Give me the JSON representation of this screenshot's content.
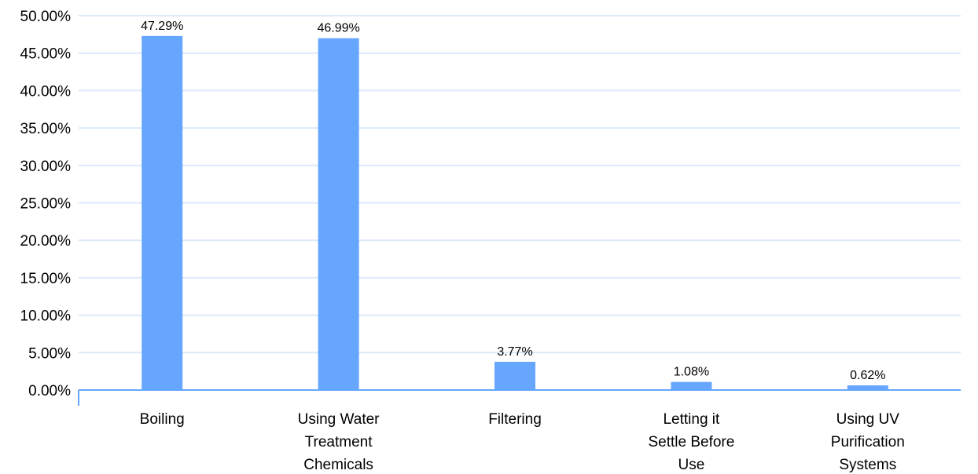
{
  "chart_data": {
    "type": "bar",
    "title": "",
    "xlabel": "",
    "ylabel": "",
    "categories": [
      [
        "Boiling"
      ],
      [
        "Using Water",
        "Treatment",
        "Chemicals"
      ],
      [
        "Filtering"
      ],
      [
        "Letting it",
        "Settle Before",
        "Use"
      ],
      [
        "Using UV",
        "Purification",
        "Systems"
      ]
    ],
    "values": [
      47.29,
      46.99,
      3.77,
      1.08,
      0.62
    ],
    "data_labels": [
      "47.29%",
      "46.99%",
      "3.77%",
      "1.08%",
      "0.62%"
    ],
    "ylim": [
      0,
      50
    ],
    "y_ticks": [
      0,
      5,
      10,
      15,
      20,
      25,
      30,
      35,
      40,
      45,
      50
    ],
    "y_tick_labels": [
      "0.00%",
      "5.00%",
      "10.00%",
      "15.00%",
      "20.00%",
      "25.00%",
      "30.00%",
      "35.00%",
      "40.00%",
      "45.00%",
      "50.00%"
    ],
    "grid": true,
    "legend": "none",
    "colors": {
      "bar": "#66a6ff",
      "grid": "#dce9fb",
      "axis": "#66a6ff"
    }
  }
}
